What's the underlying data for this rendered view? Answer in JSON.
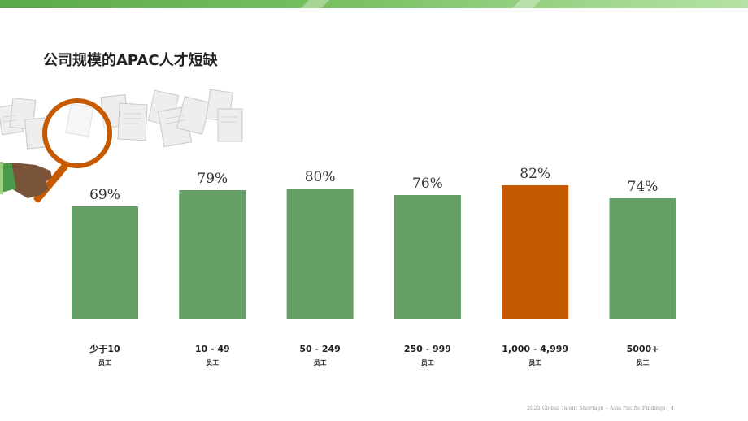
{
  "page": {
    "title": "公司规模的APAC人才短缺",
    "footer": "2025 Global Talent Shortage – Asia Pacific Findings | 4"
  },
  "colors": {
    "bar_default": "#66a066",
    "bar_highlight": "#c55a00",
    "band_left": "#5aaa4a",
    "band_right": "#b5e3a5",
    "text_dark": "#222222"
  },
  "icons": {
    "illustration": "magnifying-glass-over-documents-icon"
  },
  "chart_data": {
    "type": "bar",
    "title": "",
    "xlabel": "",
    "ylabel": "",
    "ylim": [
      0,
      100
    ],
    "grid": false,
    "legend": "none",
    "value_unit": "%",
    "highlight_index": 4,
    "categories": [
      {
        "label": "少于10",
        "sublabel": "员工"
      },
      {
        "label": "10 - 49",
        "sublabel": "员工"
      },
      {
        "label": "50 - 249",
        "sublabel": "员工"
      },
      {
        "label": "250 - 999",
        "sublabel": "员工"
      },
      {
        "label": "1,000 - 4,999",
        "sublabel": "员工"
      },
      {
        "label": "5000+",
        "sublabel": "员工"
      }
    ],
    "values": [
      69,
      79,
      80,
      76,
      82,
      74
    ],
    "value_labels": [
      "69%",
      "79%",
      "80%",
      "76%",
      "82%",
      "74%"
    ]
  }
}
